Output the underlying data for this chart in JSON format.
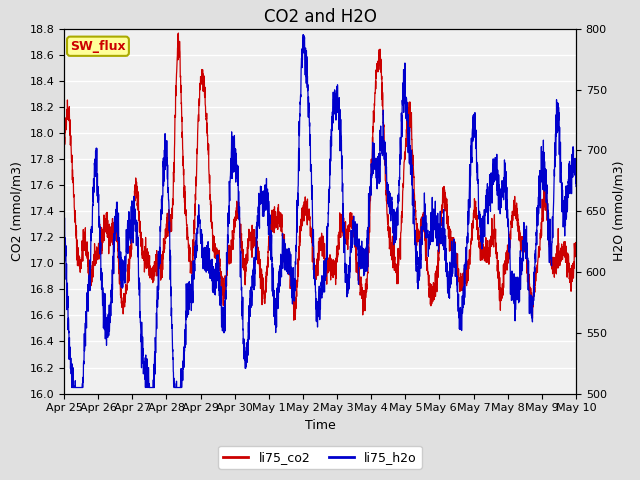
{
  "title": "CO2 and H2O",
  "xlabel": "Time",
  "ylabel_left": "CO2 (mmol/m3)",
  "ylabel_right": "H2O (mmol/m3)",
  "ylim_left": [
    16.0,
    18.8
  ],
  "ylim_right": [
    500,
    800
  ],
  "yticks_left": [
    16.0,
    16.2,
    16.4,
    16.6,
    16.8,
    17.0,
    17.2,
    17.4,
    17.6,
    17.8,
    18.0,
    18.2,
    18.4,
    18.6,
    18.8
  ],
  "yticks_right": [
    500,
    550,
    600,
    650,
    700,
    750,
    800
  ],
  "xtick_labels": [
    "Apr 25",
    "Apr 26",
    "Apr 27",
    "Apr 28",
    "Apr 29",
    "Apr 30",
    "May 1",
    "May 2",
    "May 3",
    "May 4",
    "May 5",
    "May 6",
    "May 7",
    "May 8",
    "May 9",
    "May 10"
  ],
  "co2_color": "#cc0000",
  "h2o_color": "#0000cc",
  "legend_labels": [
    "li75_co2",
    "li75_h2o"
  ],
  "sw_flux_box_facecolor": "#ffff99",
  "sw_flux_text_color": "#cc0000",
  "sw_flux_box_edgecolor": "#aaaa00",
  "fig_facecolor": "#e0e0e0",
  "plot_facecolor": "#f0f0f0",
  "grid_color": "#ffffff",
  "title_fontsize": 12,
  "axis_label_fontsize": 9,
  "tick_fontsize": 8,
  "legend_fontsize": 9,
  "line_width": 0.9
}
